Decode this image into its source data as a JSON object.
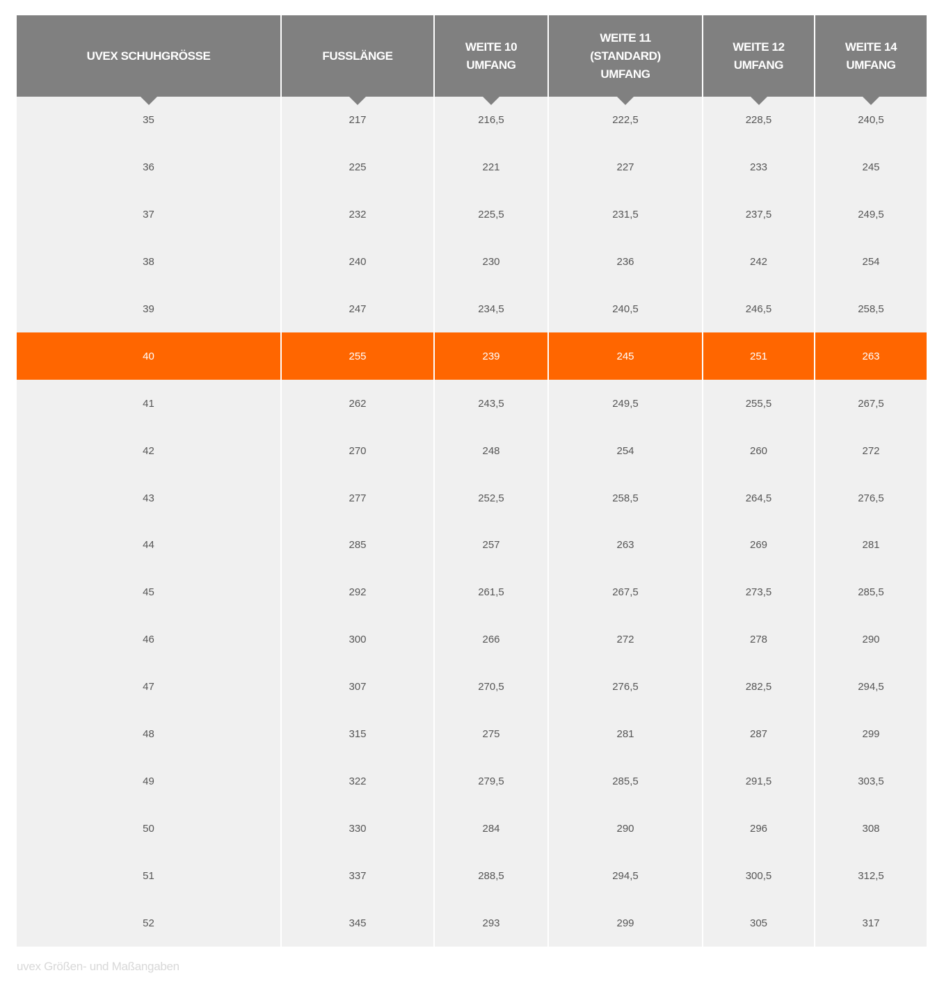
{
  "table": {
    "headers": [
      "UVEX SCHUHGRÖSSE",
      "FUSSLÄNGE",
      "WEITE 10\nUMFANG",
      "WEITE 11\n(STANDARD)\nUMFANG",
      "WEITE 12\nUMFANG",
      "WEITE 14\nUMFANG"
    ],
    "highlighted_row": 5,
    "highlight_color": "#ff6600",
    "header_color": "#808080",
    "rows": [
      [
        "35",
        "217",
        "216,5",
        "222,5",
        "228,5",
        "240,5"
      ],
      [
        "36",
        "225",
        "221",
        "227",
        "233",
        "245"
      ],
      [
        "37",
        "232",
        "225,5",
        "231,5",
        "237,5",
        "249,5"
      ],
      [
        "38",
        "240",
        "230",
        "236",
        "242",
        "254"
      ],
      [
        "39",
        "247",
        "234,5",
        "240,5",
        "246,5",
        "258,5"
      ],
      [
        "40",
        "255",
        "239",
        "245",
        "251",
        "263"
      ],
      [
        "41",
        "262",
        "243,5",
        "249,5",
        "255,5",
        "267,5"
      ],
      [
        "42",
        "270",
        "248",
        "254",
        "260",
        "272"
      ],
      [
        "43",
        "277",
        "252,5",
        "258,5",
        "264,5",
        "276,5"
      ],
      [
        "44",
        "285",
        "257",
        "263",
        "269",
        "281"
      ],
      [
        "45",
        "292",
        "261,5",
        "267,5",
        "273,5",
        "285,5"
      ],
      [
        "46",
        "300",
        "266",
        "272",
        "278",
        "290"
      ],
      [
        "47",
        "307",
        "270,5",
        "276,5",
        "282,5",
        "294,5"
      ],
      [
        "48",
        "315",
        "275",
        "281",
        "287",
        "299"
      ],
      [
        "49",
        "322",
        "279,5",
        "285,5",
        "291,5",
        "303,5"
      ],
      [
        "50",
        "330",
        "284",
        "290",
        "296",
        "308"
      ],
      [
        "51",
        "337",
        "288,5",
        "294,5",
        "300,5",
        "312,5"
      ],
      [
        "52",
        "345",
        "293",
        "299",
        "305",
        "317"
      ]
    ]
  },
  "caption": "uvex Größen- und Maßangaben"
}
